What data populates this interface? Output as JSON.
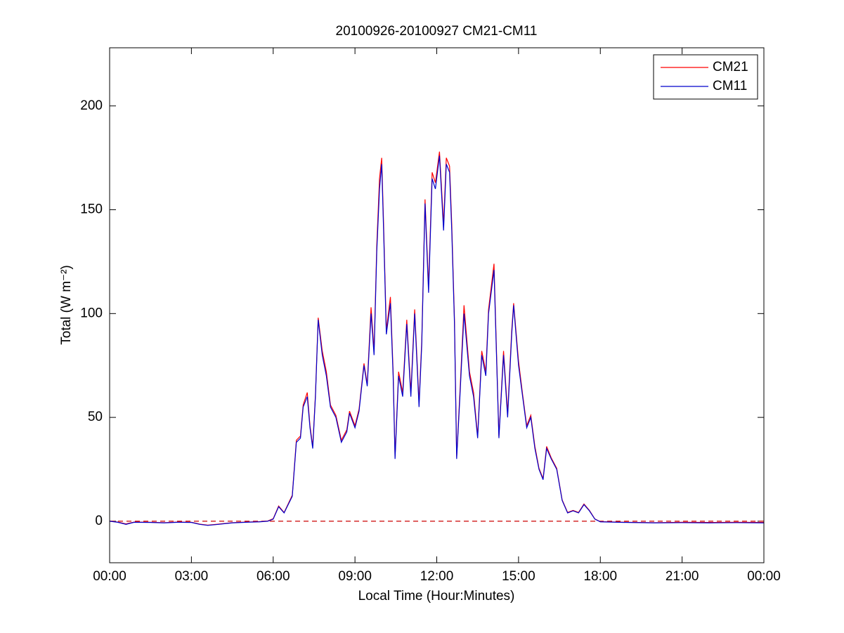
{
  "chart_data": {
    "type": "line",
    "title": "20100926-20100927 CM21-CM11",
    "xlabel": "Local Time (Hour:Minutes)",
    "ylabel": "Total (W m⁻²)",
    "x": [
      0,
      0.3,
      0.6,
      0.9,
      1.5,
      2.0,
      2.5,
      3.0,
      3.3,
      3.6,
      4.0,
      4.5,
      5.0,
      5.5,
      5.8,
      6.0,
      6.2,
      6.4,
      6.7,
      6.85,
      7.0,
      7.1,
      7.25,
      7.35,
      7.45,
      7.55,
      7.65,
      7.8,
      7.95,
      8.1,
      8.3,
      8.5,
      8.7,
      8.8,
      9.0,
      9.15,
      9.33,
      9.45,
      9.59,
      9.7,
      9.8,
      9.9,
      9.98,
      10.05,
      10.15,
      10.3,
      10.4,
      10.47,
      10.6,
      10.75,
      10.9,
      11.05,
      11.19,
      11.35,
      11.45,
      11.57,
      11.7,
      11.83,
      11.95,
      12.1,
      12.25,
      12.35,
      12.47,
      12.55,
      12.65,
      12.73,
      12.85,
      13.0,
      13.2,
      13.35,
      13.5,
      13.65,
      13.8,
      13.9,
      14.1,
      14.28,
      14.45,
      14.6,
      14.75,
      14.82,
      15.0,
      15.15,
      15.3,
      15.45,
      15.6,
      15.75,
      15.9,
      16.03,
      16.2,
      16.4,
      16.6,
      16.8,
      17.0,
      17.2,
      17.4,
      17.6,
      17.8,
      18.0,
      19.0,
      20.0,
      21.0,
      22.0,
      23.0,
      24.0
    ],
    "series": [
      {
        "name": "CM21",
        "color": "#ff0000",
        "values": [
          0,
          -0.4,
          -1.3,
          -0.4,
          -0.5,
          -0.7,
          -0.4,
          -0.5,
          -1.4,
          -1.9,
          -1.4,
          -0.7,
          -0.4,
          -0.2,
          0.1,
          1.2,
          7.3,
          4.2,
          12.5,
          39,
          41,
          56,
          62,
          46,
          36,
          61,
          98,
          82,
          72,
          56,
          51,
          39,
          44,
          53,
          46,
          54,
          76,
          66,
          103,
          82,
          133,
          165,
          175,
          143,
          92,
          108,
          72,
          31,
          72,
          62,
          97,
          62,
          102,
          57,
          87,
          155,
          113,
          168,
          163,
          178,
          143,
          175,
          171,
          143,
          97,
          31,
          62,
          104,
          72,
          62,
          41,
          82,
          72,
          102,
          124,
          41,
          82,
          52,
          92,
          105,
          77,
          61,
          46,
          51,
          36,
          25.5,
          20.5,
          36,
          30.5,
          25.5,
          10.3,
          4.2,
          5.2,
          4.2,
          8.3,
          5.2,
          1.1,
          -0.2,
          -0.5,
          -0.7,
          -0.5,
          -0.6,
          -0.5,
          -0.6
        ]
      },
      {
        "name": "CM11",
        "color": "#0000cc",
        "values": [
          0,
          -0.5,
          -1.5,
          -0.5,
          -0.6,
          -0.8,
          -0.5,
          -0.6,
          -1.5,
          -2,
          -1.5,
          -0.8,
          -0.5,
          -0.3,
          0,
          1,
          7,
          4,
          12,
          38,
          40,
          55,
          60,
          45,
          35,
          60,
          97,
          80,
          70,
          55,
          50,
          38,
          43,
          52,
          45,
          53,
          75,
          65,
          100,
          80,
          130,
          160,
          172,
          140,
          90,
          105,
          70,
          30,
          70,
          60,
          95,
          60,
          100,
          55,
          85,
          153,
          110,
          165,
          160,
          176,
          140,
          172,
          168,
          140,
          95,
          30,
          60,
          100,
          70,
          60,
          40,
          80,
          70,
          100,
          121,
          40,
          80,
          50,
          90,
          104,
          75,
          60,
          45,
          50,
          35,
          25,
          20,
          35,
          30,
          25,
          10,
          4,
          5,
          4,
          8,
          5,
          1,
          -0.3,
          -0.6,
          -0.8,
          -0.7,
          -0.8,
          -0.7,
          -0.8
        ]
      }
    ],
    "hline": {
      "value": 0,
      "color": "#cc0000",
      "style": "dashed"
    },
    "xlim": [
      0,
      24
    ],
    "xticks": [
      {
        "value": 0,
        "label": "00:00"
      },
      {
        "value": 3,
        "label": "03:00"
      },
      {
        "value": 6,
        "label": "06:00"
      },
      {
        "value": 9,
        "label": "09:00"
      },
      {
        "value": 12,
        "label": "12:00"
      },
      {
        "value": 15,
        "label": "15:00"
      },
      {
        "value": 18,
        "label": "18:00"
      },
      {
        "value": 21,
        "label": "21:00"
      },
      {
        "value": 24,
        "label": "00:00"
      }
    ],
    "ylim": [
      -20,
      228
    ],
    "yticks": [
      0,
      50,
      100,
      150,
      200
    ],
    "grid": false,
    "legend": "upper right"
  }
}
